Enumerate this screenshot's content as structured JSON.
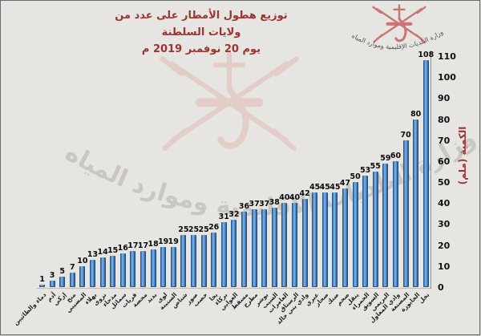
{
  "title": {
    "line1": "توزيع هطول الأمطار على عدد من ولايات السلطنة",
    "line2": "يوم 20 نوفمبر 2019 م"
  },
  "watermark": {
    "ministry_arc_text": "وزارة البلديات الإقليمية وموارد المياه"
  },
  "chart_data": {
    "type": "bar",
    "title": "توزيع هطول الأمطار على عدد من ولايات السلطنة يوم 20 نوفمبر 2019 م",
    "ylabel": "الكمية (ملم)",
    "xlabel": "",
    "ylim": [
      0,
      110
    ],
    "yticks": [
      0,
      10,
      20,
      30,
      40,
      50,
      60,
      70,
      80,
      90,
      100,
      110
    ],
    "grid": false,
    "legend_position": "none",
    "bar_color": "#3f76b5",
    "categories": [
      "دماء والطائيين",
      "أدم",
      "إزكي",
      "منح",
      "المضيبي",
      "بهلاء",
      "نزوى",
      "مدحاء",
      "سمائل",
      "قريات",
      "محضة",
      "بدبد",
      "لوى",
      "السنينة",
      "شناص",
      "صور",
      "خصب",
      "بخا",
      "بركاء",
      "العوابي",
      "مسقط",
      "مطرح",
      "بوشر",
      "السيب",
      "العامرات",
      "الرستاق",
      "وادي بني خالد",
      "عبري",
      "صحار",
      "ضنك",
      "صحم",
      "ينقل",
      "الحمراء",
      "السويق",
      "البريمي",
      "وادي المعاول",
      "المصنعة",
      "الخابورة",
      "نخل"
    ],
    "values": [
      1,
      3,
      5,
      7,
      10,
      13,
      14,
      15,
      16,
      17,
      17,
      18,
      19,
      19,
      25,
      25,
      25,
      26,
      31,
      32,
      36,
      37,
      37,
      38,
      40,
      40,
      42,
      45,
      45,
      45,
      47,
      50,
      53,
      55,
      59,
      60,
      70,
      80,
      108
    ]
  },
  "colors": {
    "background": "#e7e5e2",
    "title_text": "#9c3431",
    "axis_title_text": "#9c3431",
    "tick_text": "#111111",
    "bar": "#3f76b5",
    "emblem_red": "#c4625e",
    "watermark_gray": "#a8a39d"
  }
}
